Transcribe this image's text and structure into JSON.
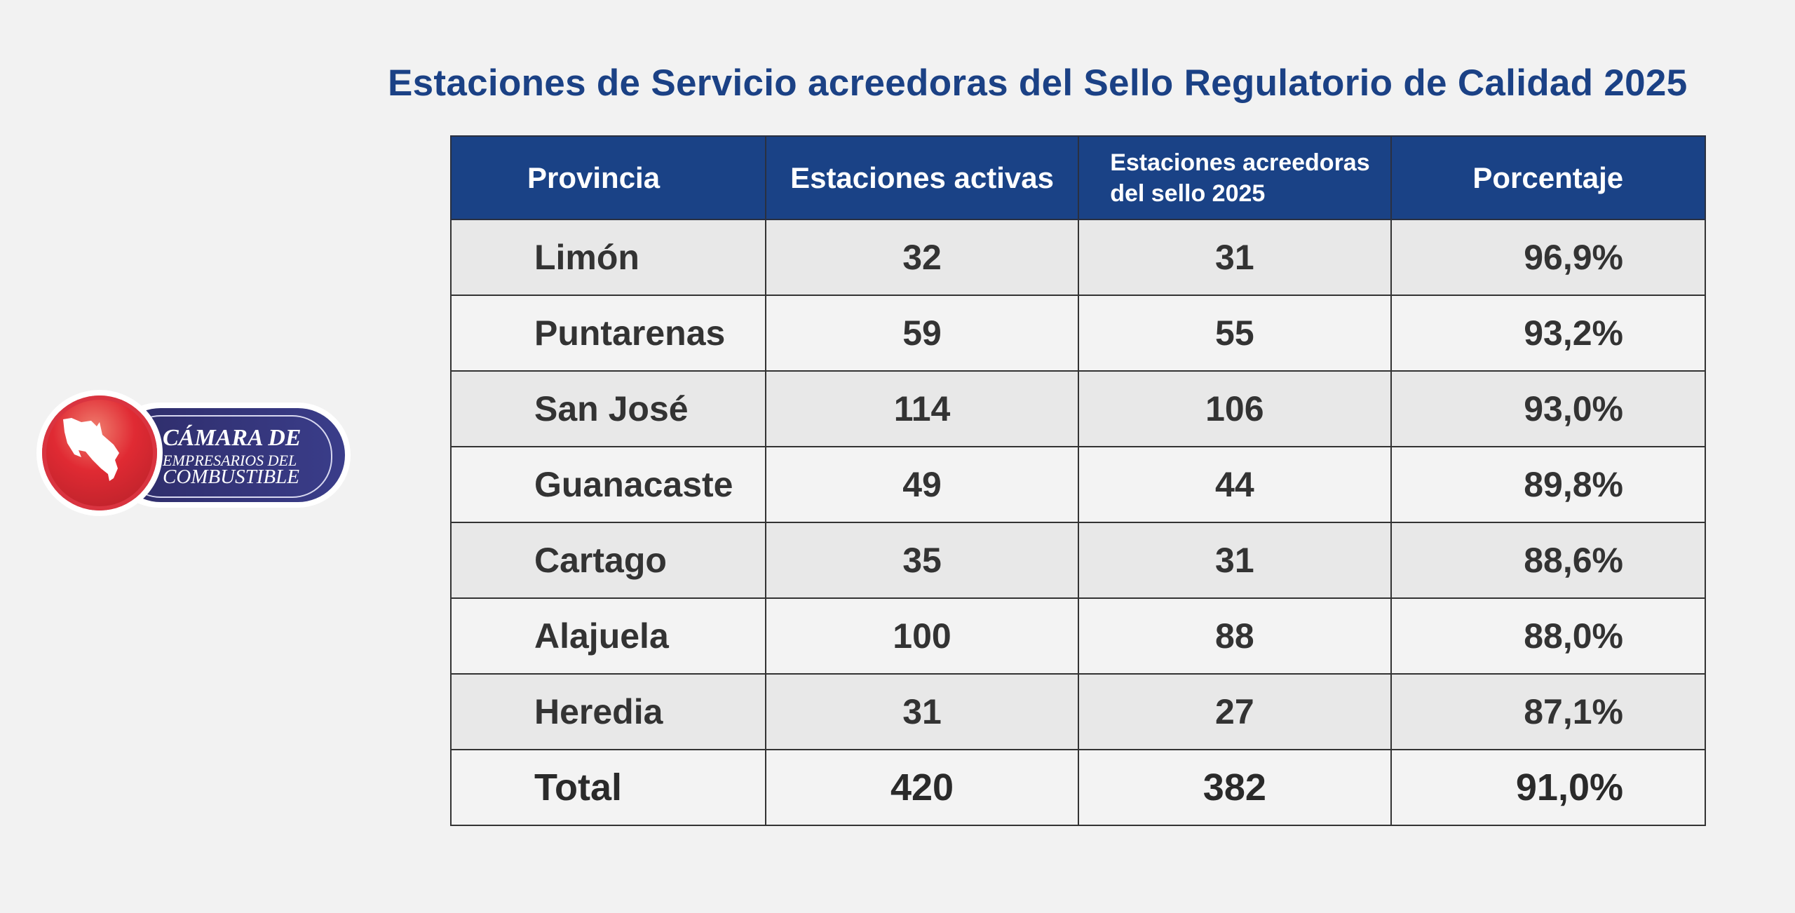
{
  "title": "Estaciones de Servicio acreedoras del Sello Regulatorio de Calidad 2025",
  "logo": {
    "line1": "CÁMARA DE",
    "line2": "EMPRESARIOS DEL",
    "line3": "COMBUSTIBLE"
  },
  "table": {
    "headers": [
      "Provincia",
      "Estaciones activas",
      "Estaciones acreedoras",
      "del sello 2025",
      "Porcentaje"
    ],
    "rows": [
      {
        "provincia": "Limón",
        "activas": "32",
        "acreedoras": "31",
        "porcentaje": "96,9%"
      },
      {
        "provincia": "Puntarenas",
        "activas": "59",
        "acreedoras": "55",
        "porcentaje": "93,2%"
      },
      {
        "provincia": "San José",
        "activas": "114",
        "acreedoras": "106",
        "porcentaje": "93,0%"
      },
      {
        "provincia": "Guanacaste",
        "activas": "49",
        "acreedoras": "44",
        "porcentaje": "89,8%"
      },
      {
        "provincia": "Cartago",
        "activas": "35",
        "acreedoras": "31",
        "porcentaje": "88,6%"
      },
      {
        "provincia": "Alajuela",
        "activas": "100",
        "acreedoras": "88",
        "porcentaje": "88,0%"
      },
      {
        "provincia": "Heredia",
        "activas": "31",
        "acreedoras": "27",
        "porcentaje": "87,1%"
      }
    ],
    "total": {
      "label": "Total",
      "activas": "420",
      "acreedoras": "382",
      "porcentaje": "91,0%"
    }
  }
}
